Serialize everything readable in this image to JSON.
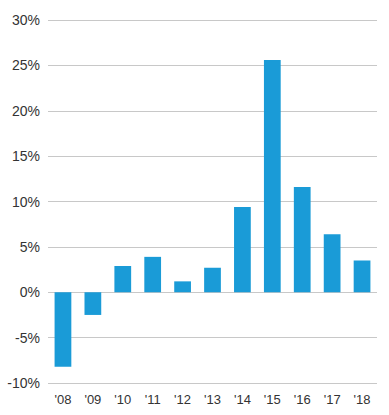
{
  "chart_data": {
    "type": "bar",
    "categories": [
      "'08",
      "'09",
      "'10",
      "'11",
      "'12",
      "'13",
      "'14",
      "'15",
      "'16",
      "'17",
      "'18"
    ],
    "values": [
      -8.2,
      -2.5,
      2.9,
      3.9,
      1.2,
      2.7,
      9.4,
      25.6,
      11.6,
      6.4,
      3.5
    ],
    "color": "#1a9bd7",
    "ylim": [
      -10,
      30
    ],
    "yticks": [
      {
        "value": -10,
        "label": "-10%"
      },
      {
        "value": -5,
        "label": "-5%"
      },
      {
        "value": 0,
        "label": "0%"
      },
      {
        "value": 5,
        "label": "5%"
      },
      {
        "value": 10,
        "label": "10%"
      },
      {
        "value": 15,
        "label": "15%"
      },
      {
        "value": 20,
        "label": "20%"
      },
      {
        "value": 25,
        "label": "25%"
      },
      {
        "value": 30,
        "label": "30%"
      }
    ],
    "grid": true
  }
}
